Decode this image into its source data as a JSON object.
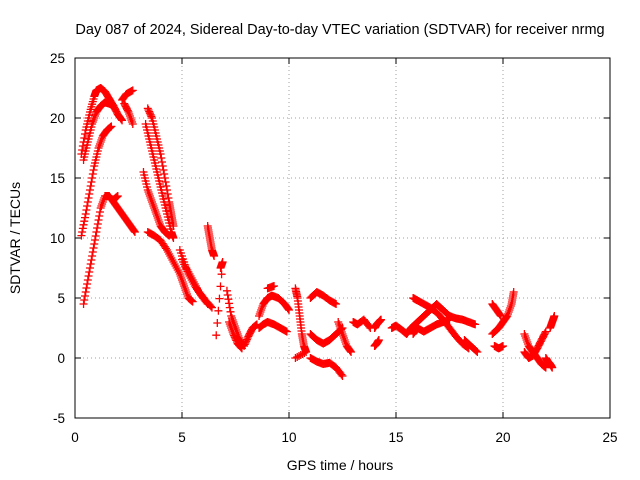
{
  "chart_data": {
    "type": "scatter",
    "title": "Day 087 of 2024, Sidereal Day-to-day VTEC variation (SDTVAR) for receiver nrmg",
    "xlabel": "GPS time / hours",
    "ylabel": "SDTVAR / TECUs",
    "xlim": [
      0,
      25
    ],
    "ylim": [
      -5,
      25
    ],
    "xticks": [
      0,
      5,
      10,
      15,
      20,
      25
    ],
    "yticks": [
      -5,
      0,
      5,
      10,
      15,
      20,
      25
    ],
    "grid": true,
    "marker": "plus",
    "color": "#ff0000",
    "series": [
      {
        "name": "SDTVAR",
        "tracks": [
          [
            [
              0.3,
              17
            ],
            [
              0.5,
              19
            ],
            [
              0.7,
              20.5
            ],
            [
              0.9,
              21.8
            ],
            [
              1.0,
              22.3
            ],
            [
              1.2,
              22.5
            ],
            [
              1.4,
              22.2
            ],
            [
              1.6,
              21.6
            ],
            [
              1.8,
              21.0
            ],
            [
              2.0,
              20.3
            ],
            [
              2.2,
              19.8
            ]
          ],
          [
            [
              0.4,
              16.5
            ],
            [
              0.6,
              18
            ],
            [
              0.8,
              19.5
            ],
            [
              1.0,
              20.5
            ],
            [
              1.2,
              21.0
            ],
            [
              1.4,
              21.3
            ],
            [
              1.6,
              21.2
            ],
            [
              1.8,
              21.0
            ]
          ],
          [
            [
              0.3,
              10.2
            ],
            [
              0.5,
              12
            ],
            [
              0.7,
              14
            ],
            [
              0.9,
              16
            ],
            [
              1.1,
              17.5
            ],
            [
              1.3,
              18.5
            ],
            [
              1.5,
              19.0
            ],
            [
              1.7,
              19.3
            ]
          ],
          [
            [
              0.4,
              4.5
            ],
            [
              0.6,
              6.5
            ],
            [
              0.8,
              8.5
            ],
            [
              1.0,
              10.5
            ],
            [
              1.2,
              12.5
            ],
            [
              1.4,
              13.5
            ],
            [
              1.6,
              13.5
            ],
            [
              1.8,
              13.0
            ],
            [
              2.0,
              12.5
            ],
            [
              2.2,
              12.0
            ],
            [
              2.4,
              11.5
            ],
            [
              2.6,
              11.0
            ],
            [
              2.8,
              10.5
            ]
          ],
          [
            [
              2.2,
              21.5
            ],
            [
              2.4,
              22.0
            ],
            [
              2.7,
              22.3
            ]
          ],
          [
            [
              2.3,
              21.2
            ],
            [
              2.5,
              20.5
            ],
            [
              2.7,
              19.5
            ]
          ],
          [
            [
              1.8,
              13.2
            ],
            [
              2.0,
              13.5
            ]
          ],
          [
            [
              3.4,
              20.8
            ],
            [
              3.6,
              20.0
            ],
            [
              3.8,
              18.5
            ],
            [
              4.0,
              17.0
            ],
            [
              4.2,
              15.0
            ],
            [
              4.4,
              13.0
            ],
            [
              4.5,
              12.0
            ],
            [
              4.6,
              11.0
            ]
          ],
          [
            [
              3.3,
              19.5
            ],
            [
              3.5,
              18.0
            ],
            [
              3.7,
              16.5
            ],
            [
              3.9,
              15.0
            ],
            [
              4.1,
              13.5
            ],
            [
              4.3,
              12.0
            ],
            [
              4.5,
              10.5
            ],
            [
              4.6,
              10.0
            ]
          ],
          [
            [
              3.2,
              15.5
            ],
            [
              3.4,
              14.0
            ],
            [
              3.6,
              13.0
            ],
            [
              3.8,
              12.0
            ],
            [
              4.0,
              11.0
            ],
            [
              4.2,
              10.5
            ],
            [
              4.4,
              10.2
            ]
          ],
          [
            [
              3.4,
              10.5
            ],
            [
              3.7,
              10.2
            ],
            [
              4.0,
              9.8
            ],
            [
              4.3,
              9.0
            ],
            [
              4.6,
              8.0
            ],
            [
              4.9,
              7.0
            ],
            [
              5.1,
              6.0
            ],
            [
              5.3,
              5.0
            ],
            [
              5.5,
              4.7
            ]
          ],
          [
            [
              4.9,
              9.0
            ],
            [
              5.2,
              7.5
            ],
            [
              5.5,
              6.5
            ],
            [
              5.8,
              5.5
            ],
            [
              6.1,
              4.8
            ],
            [
              6.4,
              4.2
            ]
          ],
          [
            [
              5.0,
              8.2
            ],
            [
              5.3,
              7.0
            ],
            [
              5.6,
              6.0
            ],
            [
              5.9,
              5.2
            ],
            [
              6.2,
              4.5
            ]
          ],
          [
            [
              6.2,
              11.0
            ],
            [
              6.3,
              10.0
            ],
            [
              6.4,
              9.0
            ],
            [
              6.5,
              8.5
            ]
          ],
          [
            [
              6.8,
              7.5
            ],
            [
              6.9,
              8.0
            ],
            [
              6.6,
              1.9
            ]
          ],
          [
            [
              7.1,
              5.6
            ],
            [
              7.3,
              3.5
            ],
            [
              7.5,
              2.5
            ],
            [
              7.7,
              1.5
            ],
            [
              7.9,
              1.0
            ],
            [
              8.1,
              1.8
            ],
            [
              8.3,
              2.5
            ],
            [
              8.5,
              2.8
            ]
          ],
          [
            [
              7.2,
              3.0
            ],
            [
              7.4,
              2.0
            ],
            [
              7.6,
              1.2
            ],
            [
              7.8,
              0.8
            ]
          ],
          [
            [
              8.6,
              3.5
            ],
            [
              8.8,
              4.5
            ],
            [
              9.0,
              5.0
            ],
            [
              9.2,
              5.2
            ],
            [
              9.5,
              5.0
            ],
            [
              9.8,
              4.5
            ],
            [
              10.0,
              4.0
            ]
          ],
          [
            [
              8.6,
              2.5
            ],
            [
              8.8,
              2.8
            ],
            [
              9.0,
              3.0
            ],
            [
              9.3,
              2.8
            ],
            [
              9.6,
              2.5
            ],
            [
              9.9,
              2.2
            ]
          ],
          [
            [
              9.0,
              5.8
            ],
            [
              9.3,
              6.0
            ]
          ],
          [
            [
              10.3,
              5.8
            ],
            [
              10.4,
              5.0
            ],
            [
              10.5,
              3.5
            ],
            [
              10.6,
              2.0
            ],
            [
              10.7,
              1.0
            ],
            [
              10.8,
              0.5
            ],
            [
              10.3,
              0.0
            ]
          ],
          [
            [
              11.0,
              5.0
            ],
            [
              11.3,
              5.5
            ],
            [
              11.6,
              5.2
            ],
            [
              11.9,
              4.8
            ],
            [
              12.2,
              4.5
            ]
          ],
          [
            [
              11.0,
              2.0
            ],
            [
              11.3,
              1.5
            ],
            [
              11.6,
              1.2
            ],
            [
              11.9,
              1.5
            ],
            [
              12.2,
              2.0
            ],
            [
              12.5,
              2.5
            ]
          ],
          [
            [
              11.0,
              0.0
            ],
            [
              11.3,
              -0.3
            ],
            [
              11.6,
              -0.5
            ],
            [
              11.9,
              -0.4
            ],
            [
              12.2,
              -0.8
            ],
            [
              12.5,
              -1.5
            ]
          ],
          [
            [
              12.3,
              3.0
            ],
            [
              12.5,
              2.0
            ],
            [
              12.7,
              1.0
            ],
            [
              12.9,
              0.5
            ]
          ],
          [
            [
              13.0,
              3.0
            ],
            [
              13.2,
              2.8
            ],
            [
              13.5,
              3.2
            ],
            [
              13.8,
              2.5
            ]
          ],
          [
            [
              14.0,
              2.5
            ],
            [
              14.1,
              2.8
            ],
            [
              14.2,
              3.0
            ],
            [
              14.3,
              3.2
            ]
          ],
          [
            [
              14.0,
              1.0
            ],
            [
              14.1,
              1.2
            ],
            [
              14.2,
              1.5
            ]
          ],
          [
            [
              14.8,
              2.5
            ],
            [
              15.0,
              2.7
            ],
            [
              15.3,
              2.3
            ],
            [
              15.5,
              2.0
            ],
            [
              15.7,
              2.5
            ],
            [
              16.0,
              3.0
            ],
            [
              16.3,
              3.5
            ],
            [
              16.6,
              4.0
            ],
            [
              16.9,
              4.5
            ],
            [
              17.2,
              4.0
            ],
            [
              17.5,
              3.5
            ]
          ],
          [
            [
              15.8,
              2.0
            ],
            [
              16.0,
              2.5
            ],
            [
              16.3,
              2.2
            ],
            [
              16.6,
              2.5
            ],
            [
              16.9,
              2.8
            ],
            [
              17.2,
              3.0
            ],
            [
              17.5,
              3.2
            ]
          ],
          [
            [
              15.8,
              5.0
            ],
            [
              16.0,
              4.8
            ],
            [
              16.3,
              4.5
            ],
            [
              16.6,
              4.2
            ],
            [
              16.9,
              3.8
            ],
            [
              17.2,
              3.2
            ],
            [
              17.5,
              2.5
            ],
            [
              17.8,
              1.8
            ],
            [
              18.1,
              1.2
            ],
            [
              18.4,
              0.8
            ]
          ],
          [
            [
              17.5,
              3.5
            ],
            [
              17.8,
              3.3
            ],
            [
              18.1,
              3.2
            ],
            [
              18.4,
              3.0
            ],
            [
              18.7,
              2.8
            ]
          ],
          [
            [
              18.2,
              1.5
            ],
            [
              18.5,
              1.0
            ],
            [
              18.8,
              0.5
            ]
          ],
          [
            [
              19.5,
              2.0
            ],
            [
              19.8,
              2.5
            ],
            [
              20.0,
              3.0
            ],
            [
              20.2,
              3.5
            ],
            [
              20.4,
              4.5
            ],
            [
              20.5,
              5.5
            ]
          ],
          [
            [
              19.5,
              4.5
            ],
            [
              19.7,
              4.0
            ],
            [
              19.9,
              3.5
            ]
          ],
          [
            [
              19.6,
              1.0
            ],
            [
              19.8,
              0.8
            ],
            [
              20.0,
              1.0
            ]
          ],
          [
            [
              21.0,
              2.0
            ],
            [
              21.2,
              1.0
            ],
            [
              21.4,
              0.5
            ],
            [
              21.6,
              0.0
            ],
            [
              21.8,
              -0.5
            ],
            [
              22.0,
              -0.8
            ]
          ],
          [
            [
              21.0,
              0.5
            ],
            [
              21.2,
              0.0
            ],
            [
              21.4,
              0.2
            ],
            [
              21.6,
              0.8
            ],
            [
              21.8,
              1.5
            ],
            [
              22.0,
              2.2
            ]
          ],
          [
            [
              22.0,
              0.0
            ],
            [
              22.1,
              -0.3
            ],
            [
              22.2,
              -0.5
            ],
            [
              22.3,
              -0.8
            ]
          ],
          [
            [
              22.2,
              2.5
            ],
            [
              22.3,
              3.0
            ],
            [
              22.4,
              3.5
            ]
          ]
        ]
      }
    ]
  }
}
